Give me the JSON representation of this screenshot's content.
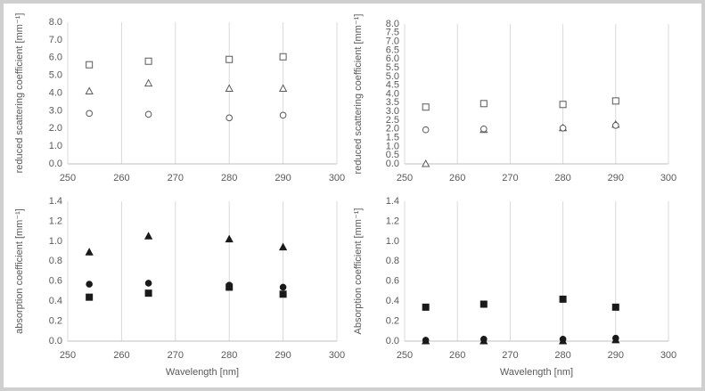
{
  "chart_data": [
    {
      "type": "scatter",
      "ylabel": "reduced scattering coefficient [mm⁻¹]",
      "x": [
        254,
        265,
        280,
        290
      ],
      "xlim": [
        250,
        300
      ],
      "xticks": [
        250,
        260,
        270,
        280,
        290,
        300
      ],
      "ylim": [
        0,
        8
      ],
      "yticks": [
        {
          "value": 0,
          "label": "0.0"
        },
        {
          "value": 1,
          "label": "1.0"
        },
        {
          "value": 2,
          "label": "2.0"
        },
        {
          "value": 3,
          "label": "3.0"
        },
        {
          "value": 4,
          "label": "4.0"
        },
        {
          "value": 5,
          "label": "5.0"
        },
        {
          "value": 6,
          "label": "6.0"
        },
        {
          "value": 7,
          "label": "7.0"
        },
        {
          "value": 8,
          "label": "8.0"
        }
      ],
      "grid": "x",
      "series": [
        {
          "marker": "square",
          "filled": false,
          "color": "#595959",
          "values": [
            5.6,
            5.8,
            5.9,
            6.05
          ]
        },
        {
          "marker": "triangle",
          "filled": false,
          "color": "#595959",
          "values": [
            4.1,
            4.55,
            4.25,
            4.25
          ]
        },
        {
          "marker": "circle",
          "filled": false,
          "color": "#595959",
          "values": [
            2.85,
            2.8,
            2.6,
            2.75
          ]
        }
      ]
    },
    {
      "type": "scatter",
      "ylabel": "reduced scattering coefficient [mm⁻¹]",
      "x": [
        254,
        265,
        280,
        290
      ],
      "xlim": [
        250,
        300
      ],
      "xticks": [
        250,
        260,
        270,
        280,
        290,
        300
      ],
      "ylim": [
        0,
        8
      ],
      "yticks": [
        {
          "value": 0,
          "label": "0.0"
        },
        {
          "value": 0.5,
          "label": "0.5"
        },
        {
          "value": 1,
          "label": "1.0"
        },
        {
          "value": 1.5,
          "label": "1.5"
        },
        {
          "value": 2,
          "label": "2.0"
        },
        {
          "value": 2.5,
          "label": "2.5"
        },
        {
          "value": 3,
          "label": "3.0"
        },
        {
          "value": 3.5,
          "label": "3.5"
        },
        {
          "value": 4,
          "label": "4.0"
        },
        {
          "value": 4.5,
          "label": "4.5"
        },
        {
          "value": 5,
          "label": "5.0"
        },
        {
          "value": 5.5,
          "label": "5.5"
        },
        {
          "value": 6,
          "label": "6.0"
        },
        {
          "value": 6.5,
          "label": "6.5"
        },
        {
          "value": 7,
          "label": "7.0"
        },
        {
          "value": 7.5,
          "label": "7.5"
        },
        {
          "value": 8,
          "label": "8.0"
        }
      ],
      "grid": "x",
      "series": [
        {
          "marker": "triangle",
          "filled": false,
          "color": "#595959",
          "values": [
            0.0,
            1.95,
            2.05,
            2.25
          ]
        },
        {
          "marker": "square",
          "filled": false,
          "color": "#595959",
          "values": [
            3.25,
            3.45,
            3.4,
            3.6
          ]
        },
        {
          "marker": "circle",
          "filled": false,
          "color": "#595959",
          "values": [
            1.95,
            2.0,
            2.05,
            2.2
          ]
        }
      ]
    },
    {
      "type": "scatter",
      "ylabel": "absorption coefficient [mm⁻¹]",
      "xlabel": "Wavelength [nm]",
      "x": [
        254,
        265,
        280,
        290
      ],
      "xlim": [
        250,
        300
      ],
      "xticks": [
        250,
        260,
        270,
        280,
        290,
        300
      ],
      "ylim": [
        0,
        1.4
      ],
      "yticks": [
        {
          "value": 0,
          "label": "0.0"
        },
        {
          "value": 0.2,
          "label": "0.2"
        },
        {
          "value": 0.4,
          "label": "0.4"
        },
        {
          "value": 0.6,
          "label": "0.6"
        },
        {
          "value": 0.8,
          "label": "0.8"
        },
        {
          "value": 1,
          "label": "1.0"
        },
        {
          "value": 1.2,
          "label": "1.2"
        },
        {
          "value": 1.4,
          "label": "1.4"
        }
      ],
      "grid": "x",
      "series": [
        {
          "marker": "triangle",
          "filled": true,
          "color": "#1a1a1a",
          "values": [
            0.89,
            1.05,
            1.02,
            0.94
          ]
        },
        {
          "marker": "circle",
          "filled": true,
          "color": "#1a1a1a",
          "values": [
            0.57,
            0.58,
            0.56,
            0.54
          ]
        },
        {
          "marker": "square",
          "filled": true,
          "color": "#1a1a1a",
          "values": [
            0.44,
            0.48,
            0.54,
            0.47
          ]
        }
      ]
    },
    {
      "type": "scatter",
      "ylabel": "Absorption  coefficient [mm⁻¹]",
      "xlabel": "Wavelength [nm]",
      "x": [
        254,
        265,
        280,
        290
      ],
      "xlim": [
        250,
        300
      ],
      "xticks": [
        250,
        260,
        270,
        280,
        290,
        300
      ],
      "ylim": [
        0,
        1.4
      ],
      "yticks": [
        {
          "value": 0,
          "label": "0.0"
        },
        {
          "value": 0.2,
          "label": "0.2"
        },
        {
          "value": 0.4,
          "label": "0.4"
        },
        {
          "value": 0.6,
          "label": "0.6"
        },
        {
          "value": 0.8,
          "label": "0.8"
        },
        {
          "value": 1,
          "label": "1.0"
        },
        {
          "value": 1.2,
          "label": "1.2"
        },
        {
          "value": 1.4,
          "label": "1.4"
        }
      ],
      "grid": "x",
      "series": [
        {
          "marker": "square",
          "filled": true,
          "color": "#1a1a1a",
          "values": [
            0.34,
            0.37,
            0.42,
            0.34
          ]
        },
        {
          "marker": "triangle",
          "filled": true,
          "color": "#1a1a1a",
          "values": [
            0.0,
            0.0,
            0.0,
            0.01
          ]
        },
        {
          "marker": "circle",
          "filled": true,
          "color": "#1a1a1a",
          "values": [
            0.01,
            0.02,
            0.02,
            0.03
          ]
        }
      ]
    }
  ]
}
